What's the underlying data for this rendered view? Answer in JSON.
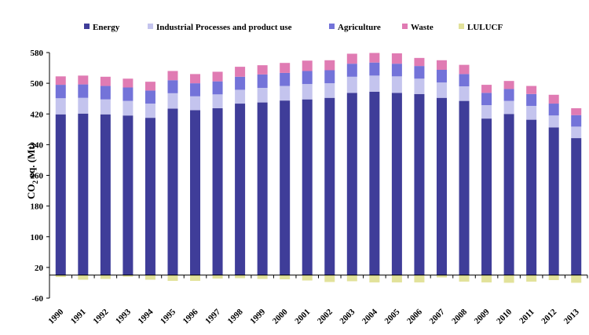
{
  "chart_data": {
    "type": "bar",
    "stacked": true,
    "title": "",
    "xlabel": "",
    "ylabel": "CO2 eq. (Mt)",
    "ylabel_main": "CO",
    "ylabel_sub": "2",
    "ylabel_rest": " eq. (Mt)",
    "ylim": [
      -60,
      580
    ],
    "yticks": [
      -60,
      20,
      100,
      180,
      260,
      340,
      420,
      500,
      580
    ],
    "grid": false,
    "legend_position": "top",
    "categories": [
      "1990",
      "1991",
      "1992",
      "1993",
      "1994",
      "1995",
      "1996",
      "1997",
      "1998",
      "1999",
      "2000",
      "2001",
      "2002",
      "2003",
      "2004",
      "2005",
      "2006",
      "2007",
      "2008",
      "2009",
      "2010",
      "2011",
      "2012",
      "2013"
    ],
    "series": [
      {
        "name": "Energy",
        "color": "#3f3d99",
        "values": [
          419,
          421,
          419,
          416,
          410,
          434,
          430,
          435,
          447,
          450,
          455,
          458,
          462,
          475,
          478,
          475,
          472,
          462,
          454,
          408,
          420,
          405,
          385,
          357
        ]
      },
      {
        "name": "Industrial Processes and product use",
        "color": "#c4c4ee",
        "values": [
          42,
          41,
          39,
          38,
          37,
          40,
          36,
          36,
          36,
          38,
          38,
          40,
          38,
          42,
          42,
          43,
          40,
          40,
          38,
          35,
          34,
          36,
          31,
          30
        ]
      },
      {
        "name": "Agriculture",
        "color": "#7373d9",
        "values": [
          35,
          35,
          35,
          35,
          34,
          34,
          34,
          34,
          34,
          35,
          34,
          34,
          34,
          34,
          34,
          33,
          33,
          33,
          32,
          32,
          31,
          31,
          31,
          30
        ]
      },
      {
        "name": "Waste",
        "color": "#e07bb3",
        "values": [
          22,
          23,
          24,
          23,
          23,
          24,
          24,
          25,
          26,
          24,
          26,
          27,
          26,
          26,
          25,
          27,
          21,
          25,
          24,
          21,
          21,
          21,
          23,
          18
        ]
      },
      {
        "name": "LULUCF",
        "color": "#e2e29a",
        "values": [
          -5,
          -12,
          -10,
          -4,
          -12,
          -15,
          -15,
          -9,
          -8,
          -10,
          -11,
          -14,
          -18,
          -16,
          -19,
          -19,
          -19,
          -6,
          -17,
          -19,
          -20,
          -17,
          -13,
          -20
        ]
      }
    ]
  }
}
